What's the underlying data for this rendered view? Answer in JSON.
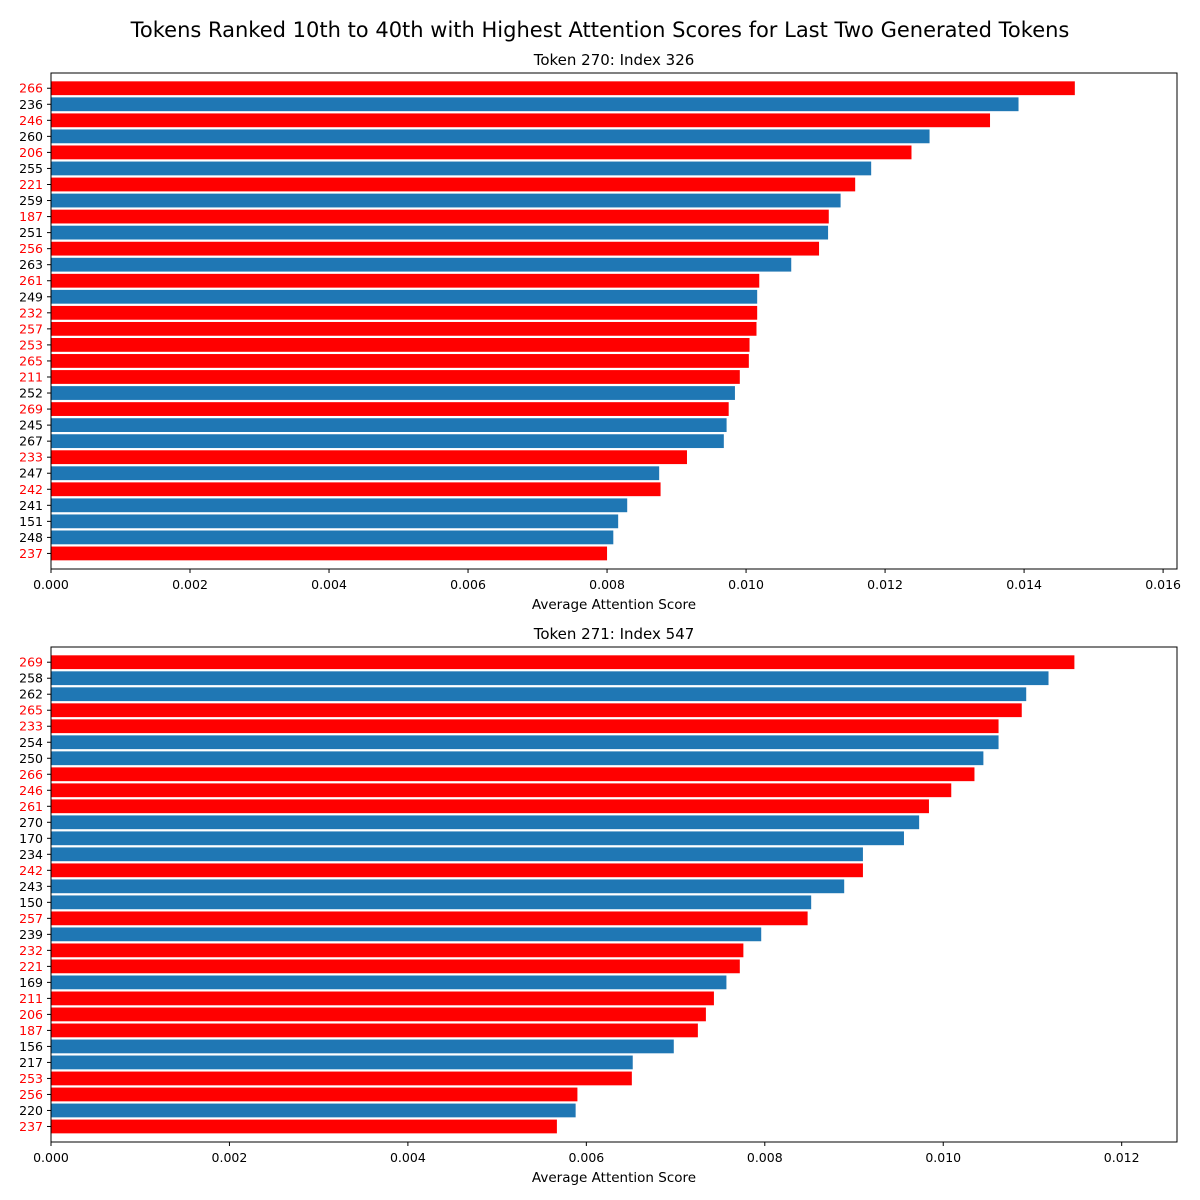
{
  "figure": {
    "title": "Tokens Ranked 10th to 40th with Highest Attention Scores for Last Two Generated Tokens"
  },
  "colors": {
    "highlight": "#ff0000",
    "default": "#1f77b4"
  },
  "chart_data": [
    {
      "type": "bar",
      "orientation": "horizontal",
      "title": "Token 270: Index 326",
      "xlabel": "Average Attention Score",
      "ylabel": "",
      "xlim": [
        0,
        0.0162
      ],
      "xticks": [
        "0.000",
        "0.002",
        "0.004",
        "0.006",
        "0.008",
        "0.010",
        "0.012",
        "0.014",
        "0.016"
      ],
      "xtick_values": [
        0,
        0.002,
        0.004,
        0.006,
        0.008,
        0.01,
        0.012,
        0.014,
        0.016
      ],
      "grid": false,
      "categories": [
        "266",
        "236",
        "246",
        "260",
        "206",
        "255",
        "221",
        "259",
        "187",
        "251",
        "256",
        "263",
        "261",
        "249",
        "232",
        "257",
        "253",
        "265",
        "211",
        "252",
        "269",
        "245",
        "267",
        "233",
        "247",
        "242",
        "241",
        "151",
        "248",
        "237"
      ],
      "values": [
        0.01473,
        0.01392,
        0.01351,
        0.01264,
        0.01238,
        0.0118,
        0.01157,
        0.01136,
        0.01119,
        0.01118,
        0.01105,
        0.01065,
        0.01019,
        0.01016,
        0.01016,
        0.01015,
        0.01005,
        0.01004,
        0.00991,
        0.00984,
        0.00975,
        0.00972,
        0.00968,
        0.00915,
        0.00875,
        0.00877,
        0.00829,
        0.00816,
        0.00809,
        0.008
      ],
      "highlighted": [
        true,
        false,
        true,
        false,
        true,
        false,
        true,
        false,
        true,
        false,
        true,
        false,
        true,
        false,
        true,
        true,
        true,
        true,
        true,
        false,
        true,
        false,
        false,
        true,
        false,
        true,
        false,
        false,
        false,
        true
      ]
    },
    {
      "type": "bar",
      "orientation": "horizontal",
      "title": "Token 271: Index 547",
      "xlabel": "Average Attention Score",
      "ylabel": "",
      "xlim": [
        0,
        0.01262
      ],
      "xticks": [
        "0.000",
        "0.002",
        "0.004",
        "0.006",
        "0.008",
        "0.010",
        "0.012"
      ],
      "xtick_values": [
        0,
        0.002,
        0.004,
        0.006,
        0.008,
        0.01,
        0.012
      ],
      "grid": false,
      "categories": [
        "269",
        "258",
        "262",
        "265",
        "233",
        "254",
        "250",
        "266",
        "246",
        "261",
        "270",
        "170",
        "234",
        "242",
        "243",
        "150",
        "257",
        "239",
        "232",
        "221",
        "169",
        "211",
        "206",
        "187",
        "156",
        "217",
        "253",
        "256",
        "220",
        "237"
      ],
      "values": [
        0.01147,
        0.01118,
        0.01093,
        0.01088,
        0.01062,
        0.01062,
        0.01045,
        0.01035,
        0.01009,
        0.00984,
        0.00973,
        0.00956,
        0.0091,
        0.0091,
        0.00889,
        0.00852,
        0.00848,
        0.00796,
        0.00776,
        0.00772,
        0.00757,
        0.00743,
        0.00734,
        0.00725,
        0.00698,
        0.00652,
        0.00651,
        0.0059,
        0.00588,
        0.00567
      ],
      "highlighted": [
        true,
        false,
        false,
        true,
        true,
        false,
        false,
        true,
        true,
        true,
        false,
        false,
        false,
        true,
        false,
        false,
        true,
        false,
        true,
        true,
        false,
        true,
        true,
        true,
        false,
        false,
        true,
        true,
        false,
        true
      ]
    }
  ]
}
